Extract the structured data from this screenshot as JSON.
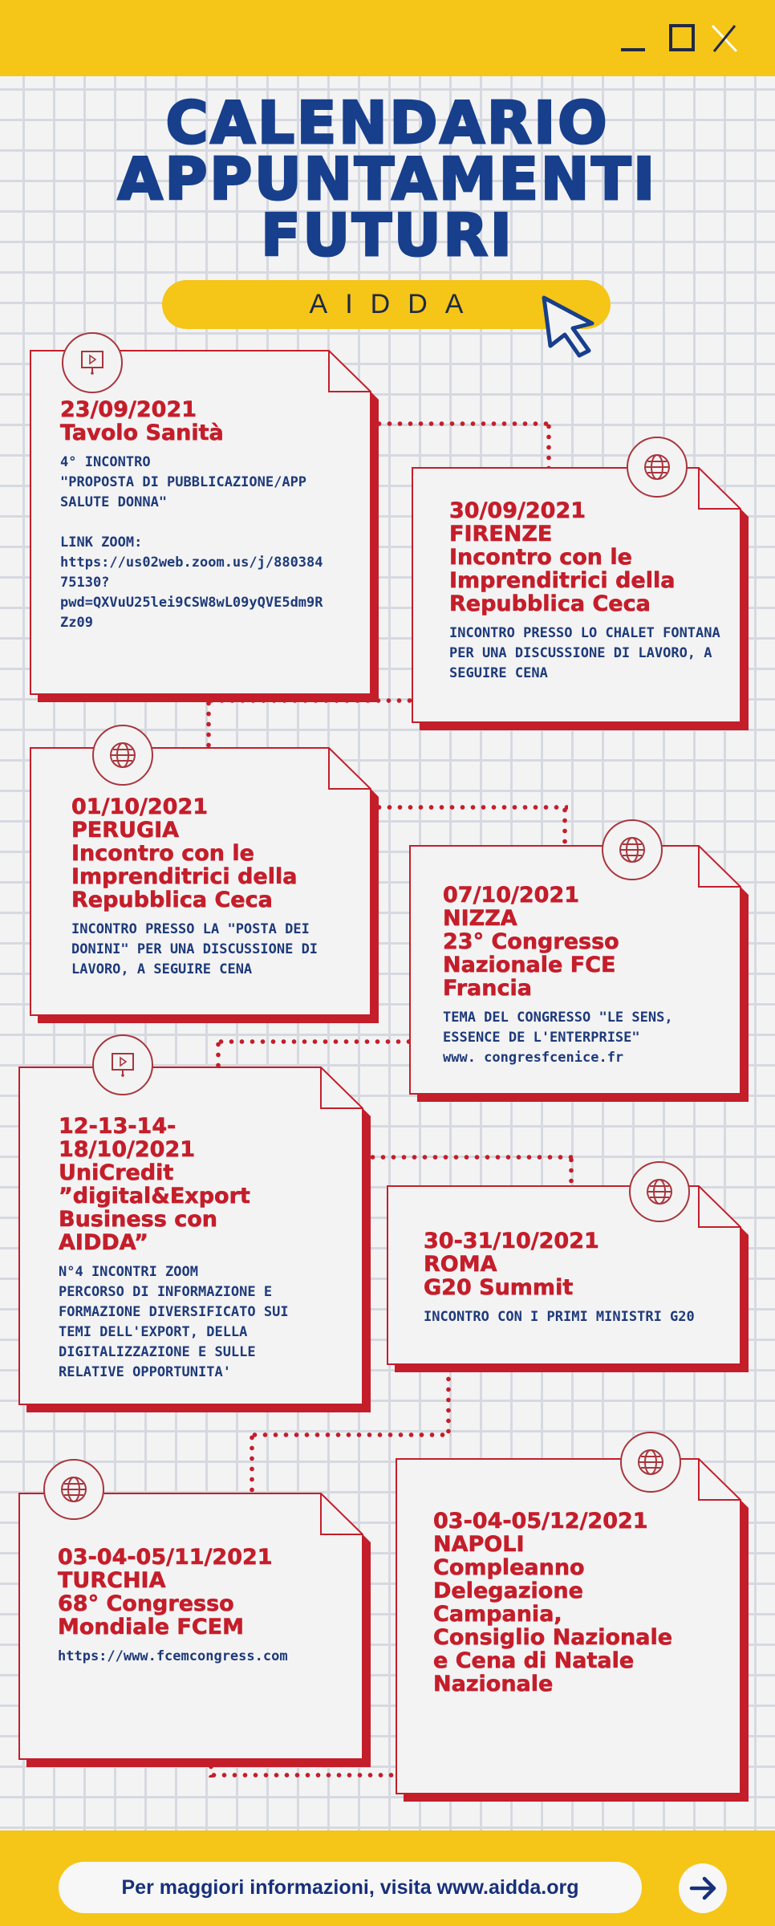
{
  "window_controls": {
    "icons": [
      "minimize-icon",
      "maximize-icon",
      "close-icon"
    ]
  },
  "header": {
    "title": "CALENDARIO\nAPPUNTAMENTI\nFUTURI",
    "badge": "AIDDA"
  },
  "colors": {
    "yellow": "#f5c518",
    "navy": "#173f8c",
    "red": "#c41e2a",
    "paper": "#f3f3f4"
  },
  "events": [
    {
      "icon": "presentation-icon",
      "headline": "23/09/2021\nTavolo Sanità",
      "body": "4° INCONTRO\n\"PROPOSTA DI PUBBLICAZIONE/APP\nSALUTE DONNA\"\n\nLINK ZOOM:\nhttps://us02web.zoom.us/j/880384\n75130?\npwd=QXVuU25lei9CSW8wL09yQVE5dm9R\nZz09"
    },
    {
      "icon": "globe-icon",
      "headline": "30/09/2021\nFIRENZE\nIncontro con le\nImprenditrici della\nRepubblica Ceca",
      "body": "INCONTRO PRESSO LO CHALET FONTANA\nPER UNA DISCUSSIONE DI LAVORO, A\nSEGUIRE CENA"
    },
    {
      "icon": "globe-icon",
      "headline": "01/10/2021\nPERUGIA\nIncontro con le\nImprenditrici della\nRepubblica Ceca",
      "body": "INCONTRO PRESSO LA \"POSTA DEI\nDONINI\" PER UNA DISCUSSIONE DI\nLAVORO, A SEGUIRE CENA"
    },
    {
      "icon": "globe-icon",
      "headline": "07/10/2021\nNIZZA\n23° Congresso\nNazionale FCE\nFrancia",
      "body": "TEMA DEL CONGRESSO \"LE SENS,\nESSENCE DE L'ENTERPRISE\"\nwww. congresfcenice.fr"
    },
    {
      "icon": "presentation-icon",
      "headline": "12-13-14-\n18/10/2021\nUniCredit\n”digital&Export\nBusiness con\nAIDDA”",
      "body": "N°4 INCONTRI ZOOM\nPERCORSO DI INFORMAZIONE E\nFORMAZIONE DIVERSIFICATO SUI\nTEMI DELL'EXPORT, DELLA\nDIGITALIZZAZIONE E SULLE\nRELATIVE OPPORTUNITA'"
    },
    {
      "icon": "globe-icon",
      "headline": "30-31/10/2021\nROMA\nG20 Summit",
      "body": "INCONTRO CON I PRIMI MINISTRI G20"
    },
    {
      "icon": "globe-icon",
      "headline": "03-04-05/11/2021\nTURCHIA\n68° Congresso\nMondiale FCEM",
      "body": "https://www.fcemcongress.com"
    },
    {
      "icon": "globe-icon",
      "headline": "03-04-05/12/2021\nNAPOLI\nCompleanno\nDelegazione\nCampania,\nConsiglio Nazionale\ne Cena di Natale\nNazionale",
      "body": ""
    }
  ],
  "footer": {
    "text": "Per maggiori informazioni, visita www.aidda.org",
    "arrow_icon": "arrow-right-icon"
  }
}
